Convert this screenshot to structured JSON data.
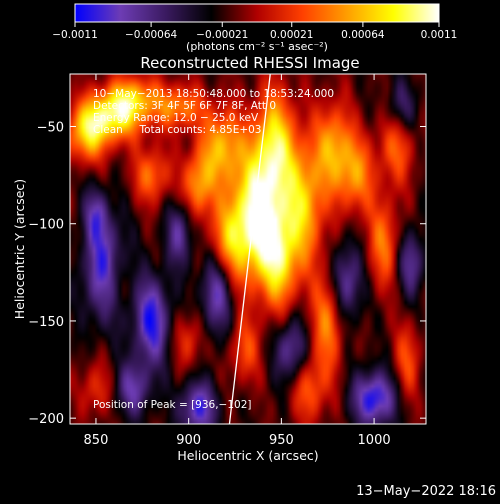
{
  "chart_data": {
    "type": "heatmap",
    "title": "Reconstructed RHESSI Image",
    "xlabel": "Heliocentric X (arcsec)",
    "ylabel": "Heliocentric Y (arcsec)",
    "xlim": [
      836,
      1028
    ],
    "ylim": [
      -203,
      -23
    ],
    "x_ticks": [
      850,
      900,
      950,
      1000
    ],
    "y_ticks": [
      -50,
      -100,
      -150,
      -200
    ],
    "x_tick_labels": [
      "850",
      "900",
      "950",
      "1000"
    ],
    "y_tick_labels": [
      "−50",
      "−100",
      "−150",
      "−200"
    ],
    "colorbar": {
      "range": [
        -0.0011,
        0.0011
      ],
      "ticks": [
        -0.0011,
        -0.00064,
        -0.00021,
        0.00021,
        0.00064,
        0.0011
      ],
      "tick_labels": [
        "−0.0011",
        "−0.00064",
        "−0.00021",
        "0.00021",
        "0.00064",
        "0.0011"
      ],
      "unit_label": "(photons cm⁻² s⁻¹ asec⁻²)"
    },
    "annotations": [
      "10−May−2013 18:50:48.000 to 18:53:24.000",
      "Detectors: 3F 4F 5F 6F 7F 8F, Att 0",
      "Energy Range: 12.0 − 25.0 keV",
      "Clean     Total counts: 4.85E+03"
    ],
    "peak_label": "Position of Peak = [936,−102]",
    "peak": [
      936,
      -102
    ],
    "limb_line": [
      [
        922,
        -203
      ],
      [
        944,
        -23
      ]
    ],
    "footer": "13−May−2022 18:16",
    "grid": false,
    "legend": "none",
    "colormap": [
      "#0000ff",
      "#6d3cb4",
      "#3a1a60",
      "#000000",
      "#b00000",
      "#ff4000",
      "#ffa000",
      "#ffff00",
      "#ffffff"
    ],
    "hotspots": [
      [
        936,
        -98,
        10,
        22,
        1.0
      ],
      [
        946,
        -60,
        8,
        20,
        0.75
      ],
      [
        949,
        -120,
        7,
        18,
        0.6
      ],
      [
        962,
        -90,
        8,
        22,
        0.65
      ],
      [
        978,
        -60,
        7,
        16,
        0.55
      ],
      [
        990,
        -75,
        7,
        14,
        0.5
      ],
      [
        918,
        -60,
        8,
        14,
        0.6
      ],
      [
        905,
        -80,
        6,
        12,
        0.55
      ],
      [
        858,
        -45,
        12,
        9,
        0.75
      ],
      [
        845,
        -55,
        8,
        10,
        0.55
      ],
      [
        870,
        -35,
        10,
        8,
        0.55
      ],
      [
        895,
        -40,
        9,
        8,
        0.5
      ],
      [
        880,
        -75,
        7,
        10,
        0.45
      ],
      [
        920,
        -110,
        7,
        14,
        0.45
      ],
      [
        975,
        -150,
        6,
        18,
        0.5
      ],
      [
        1005,
        -110,
        6,
        16,
        0.45
      ],
      [
        1012,
        -60,
        7,
        14,
        0.4
      ],
      [
        965,
        -185,
        7,
        12,
        0.4
      ],
      [
        930,
        -165,
        6,
        12,
        0.35
      ],
      [
        1018,
        -170,
        5,
        14,
        0.35
      ],
      [
        900,
        -160,
        6,
        10,
        0.3
      ],
      [
        860,
        -130,
        6,
        12,
        0.3
      ],
      [
        850,
        -185,
        6,
        10,
        0.3
      ]
    ],
    "coldspots": [
      [
        855,
        -125,
        8,
        18,
        0.7
      ],
      [
        880,
        -150,
        7,
        16,
        0.65
      ],
      [
        915,
        -135,
        6,
        16,
        0.55
      ],
      [
        905,
        -195,
        7,
        10,
        0.6
      ],
      [
        955,
        -165,
        6,
        12,
        0.5
      ],
      [
        1000,
        -190,
        8,
        10,
        0.7
      ],
      [
        985,
        -130,
        6,
        14,
        0.5
      ],
      [
        1020,
        -120,
        5,
        12,
        0.45
      ],
      [
        895,
        -105,
        5,
        12,
        0.45
      ],
      [
        850,
        -95,
        5,
        10,
        0.4
      ],
      [
        870,
        -185,
        7,
        10,
        0.45
      ],
      [
        1015,
        -40,
        6,
        10,
        0.35
      ]
    ]
  }
}
